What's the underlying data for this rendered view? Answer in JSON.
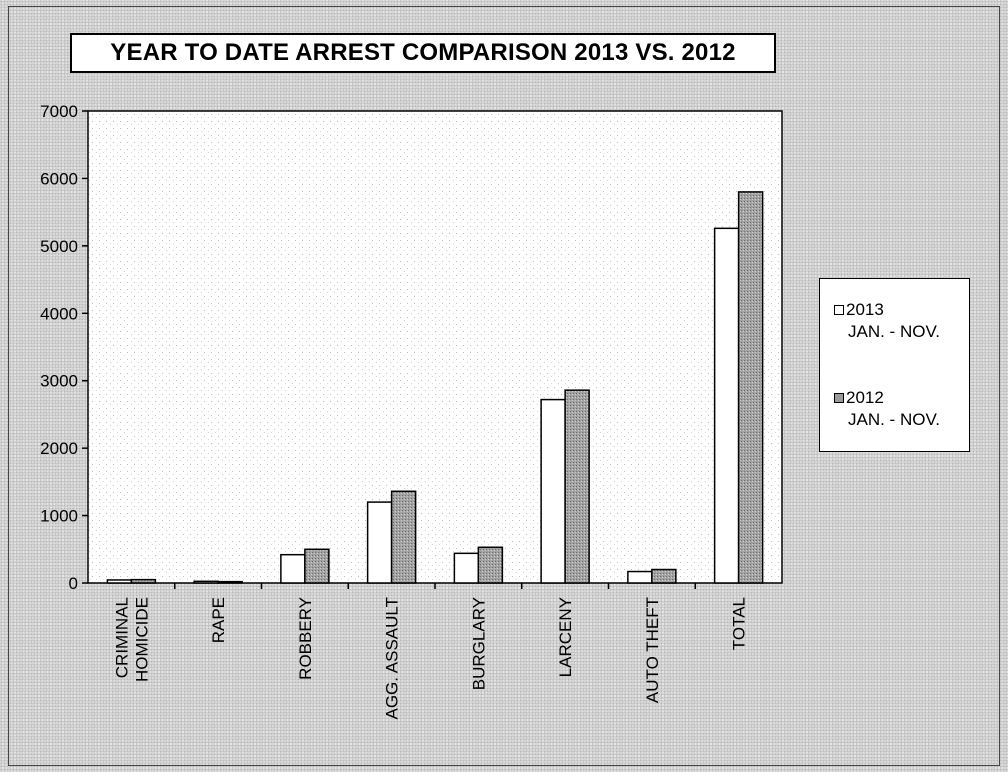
{
  "chart_data": {
    "type": "bar",
    "title": "YEAR TO DATE ARREST COMPARISON 2013 VS. 2012",
    "xlabel": "",
    "ylabel": "",
    "ylim": [
      0,
      7000
    ],
    "yticks": [
      0,
      1000,
      2000,
      3000,
      4000,
      5000,
      6000,
      7000
    ],
    "grid": false,
    "legend_position": "right",
    "categories": [
      [
        "CRIMINAL",
        "HOMICIDE"
      ],
      [
        "RAPE"
      ],
      [
        "ROBBERY"
      ],
      [
        "AGG. ASSAULT"
      ],
      [
        "BURGLARY"
      ],
      [
        "LARCENY"
      ],
      [
        "AUTO THEFT"
      ],
      [
        "TOTAL"
      ]
    ],
    "series": [
      {
        "name": "2013",
        "name_line2": "JAN. - NOV.",
        "color": "#ffffff",
        "values": [
          45,
          25,
          420,
          1200,
          440,
          2720,
          170,
          5260
        ]
      },
      {
        "name": "2012",
        "name_line2": "JAN. - NOV.",
        "color": "#9a9a9a",
        "values": [
          50,
          20,
          500,
          1360,
          530,
          2860,
          200,
          5800
        ]
      }
    ]
  }
}
